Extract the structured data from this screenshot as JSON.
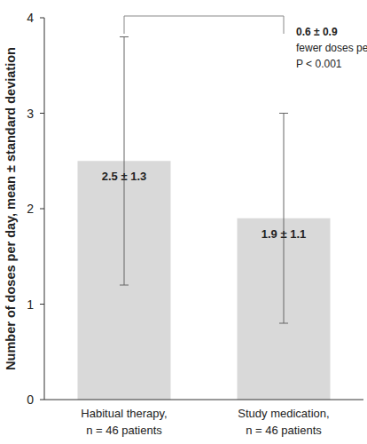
{
  "chart_data": {
    "type": "bar",
    "categories": [
      "Habitual therapy, n = 46 patients",
      "Study medication, n = 46 patients"
    ],
    "values": [
      2.5,
      1.9
    ],
    "value_labels": [
      "2.5 ± 1.3",
      "1.9 ± 1.1"
    ],
    "errors": [
      1.3,
      1.1
    ],
    "color": "#d9d9d9",
    "y_label": "Number of doses per day, mean ± standard deviation",
    "annotation": [
      "0.6 ± 0.9",
      "fewer doses per day,",
      "P < 0.001"
    ],
    "ylim": [
      0,
      4
    ],
    "yticks": [
      0,
      1,
      2,
      3,
      4
    ],
    "grid": false,
    "data_labels": true
  }
}
